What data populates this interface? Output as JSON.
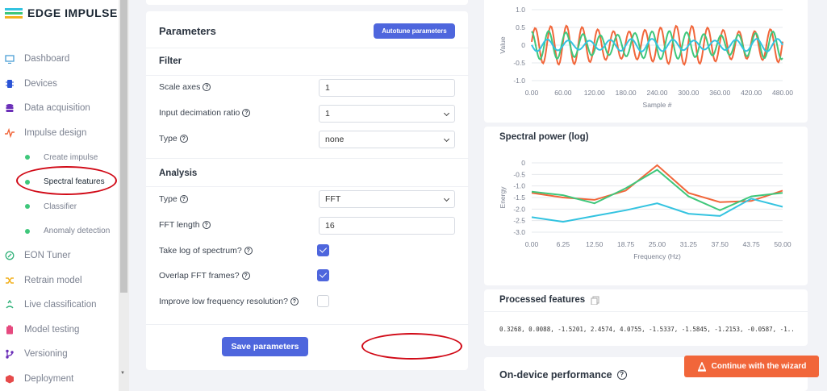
{
  "app": {
    "logo_text": "EDGE IMPULSE"
  },
  "sidebar": {
    "items": [
      {
        "label": "Dashboard",
        "icon": "monitor-icon",
        "color": "#4a9fd5"
      },
      {
        "label": "Devices",
        "icon": "chip-icon",
        "color": "#2b54d6"
      },
      {
        "label": "Data acquisition",
        "icon": "database-icon",
        "color": "#6b2fb8"
      },
      {
        "label": "Impulse design",
        "icon": "pulse-icon",
        "color": "#f1663a"
      },
      {
        "label": "Create impulse",
        "sub": true
      },
      {
        "label": "Spectral features",
        "sub": true,
        "active": true
      },
      {
        "label": "Classifier",
        "sub": true
      },
      {
        "label": "Anomaly detection",
        "sub": true
      },
      {
        "label": "EON Tuner",
        "icon": "target-icon",
        "color": "#34b27b"
      },
      {
        "label": "Retrain model",
        "icon": "shuffle-icon",
        "color": "#f2b01e"
      },
      {
        "label": "Live classification",
        "icon": "live-icon",
        "color": "#34b27b"
      },
      {
        "label": "Model testing",
        "icon": "clipboard-icon",
        "color": "#e64a7f"
      },
      {
        "label": "Versioning",
        "icon": "branch-icon",
        "color": "#6b2fb8"
      },
      {
        "label": "Deployment",
        "icon": "box-icon",
        "color": "#e64a4a"
      }
    ]
  },
  "parameters": {
    "title": "Parameters",
    "autotune_label": "Autotune parameters",
    "filter_heading": "Filter",
    "scale_axes_label": "Scale axes",
    "scale_axes_value": "1",
    "decimation_label": "Input decimation ratio",
    "decimation_value": "1",
    "filter_type_label": "Type",
    "filter_type_value": "none",
    "analysis_heading": "Analysis",
    "analysis_type_label": "Type",
    "analysis_type_value": "FFT",
    "fft_length_label": "FFT length",
    "fft_length_value": "16",
    "take_log_label": "Take log of spectrum?",
    "take_log_checked": true,
    "overlap_label": "Overlap FFT frames?",
    "overlap_checked": true,
    "improve_label": "Improve low frequency resolution?",
    "improve_checked": false,
    "save_label": "Save parameters"
  },
  "spectral": {
    "title": "Spectral power (log)"
  },
  "processed": {
    "title": "Processed features",
    "values": "0.3268, 0.0088, -1.5201, 2.4574, 4.0755, -1.5337, -1.5845, -1.2153, -0.0587, -1..."
  },
  "ondevice": {
    "title": "On-device performance"
  },
  "wizard": {
    "label": "Continue with the wizard"
  },
  "chart_data": [
    {
      "type": "line",
      "xlabel": "Sample #",
      "ylabel": "Value",
      "ylim": [
        -1.0,
        1.0
      ],
      "y_ticks": [
        "1.0",
        "0.5",
        "0",
        "-0.5",
        "-1.0"
      ],
      "x_ticks": [
        "0.00",
        "60.00",
        "120.00",
        "180.00",
        "240.00",
        "300.00",
        "360.00",
        "420.00",
        "480.00"
      ],
      "xlim": [
        0,
        480
      ],
      "series_colors": [
        "#f1663a",
        "#3fc77b",
        "#33c3e0"
      ],
      "series": [
        {
          "amplitude": 0.55,
          "period": 30,
          "phase": 0.2
        },
        {
          "amplitude": 0.4,
          "period": 33,
          "phase": 1.7
        },
        {
          "amplitude": 0.18,
          "period": 40,
          "phase": 3.1
        }
      ]
    },
    {
      "type": "line",
      "xlabel": "Frequency (Hz)",
      "ylabel": "Energy",
      "ylim": [
        -3.0,
        0
      ],
      "y_ticks": [
        "0",
        "-0.5",
        "-1.0",
        "-1.5",
        "-2.0",
        "-2.5",
        "-3.0"
      ],
      "x_ticks": [
        "0.00",
        "6.25",
        "12.50",
        "18.75",
        "25.00",
        "31.25",
        "37.50",
        "43.75",
        "50.00"
      ],
      "x": [
        0,
        6.25,
        12.5,
        18.75,
        25,
        31.25,
        37.5,
        43.75,
        50
      ],
      "series": [
        {
          "color": "#f1663a",
          "values": [
            -1.3,
            -1.5,
            -1.6,
            -1.2,
            -0.1,
            -1.3,
            -1.7,
            -1.65,
            -1.2
          ]
        },
        {
          "color": "#3fc77b",
          "values": [
            -1.25,
            -1.4,
            -1.75,
            -1.1,
            -0.3,
            -1.45,
            -2.05,
            -1.45,
            -1.3
          ]
        },
        {
          "color": "#33c3e0",
          "values": [
            -2.35,
            -2.55,
            -2.3,
            -2.05,
            -1.75,
            -2.2,
            -2.3,
            -1.55,
            -1.9
          ]
        }
      ]
    }
  ]
}
